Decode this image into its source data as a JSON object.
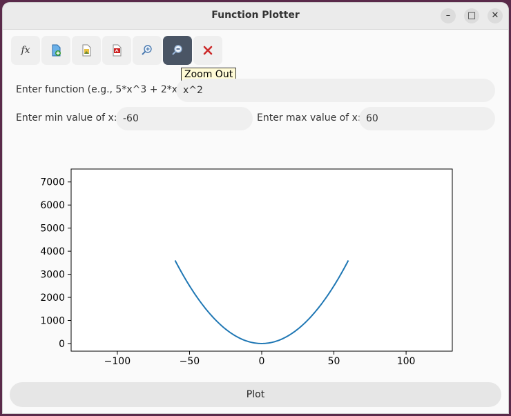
{
  "window": {
    "title": "Function Plotter"
  },
  "toolbar": {
    "buttons": [
      {
        "name": "function-button",
        "icon": "fx-icon",
        "glyph": "fx"
      },
      {
        "name": "new-file-button",
        "icon": "new-file-icon"
      },
      {
        "name": "image-button",
        "icon": "image-file-icon"
      },
      {
        "name": "pdf-button",
        "icon": "pdf-icon"
      },
      {
        "name": "zoom-in-button",
        "icon": "zoom-in-icon"
      },
      {
        "name": "zoom-out-button",
        "icon": "zoom-out-icon"
      },
      {
        "name": "clear-button",
        "icon": "close-icon"
      }
    ],
    "tooltip": "Zoom Out"
  },
  "form": {
    "function_label": "Enter function (e.g., 5*x^3 + 2*x):",
    "function_value": "x^2",
    "min_label": "Enter min value of x:",
    "min_value": "-60",
    "max_label": "Enter max value of x:",
    "max_value": "60"
  },
  "plot_button": "Plot",
  "chart_data": {
    "type": "line",
    "function": "x^2",
    "x_range": [
      -60,
      60
    ],
    "xlim": [
      -132,
      132
    ],
    "ylim": [
      -330,
      7560
    ],
    "x_ticks": [
      -100,
      -50,
      0,
      50,
      100
    ],
    "x_tick_labels": [
      "−100",
      "−50",
      "0",
      "50",
      "100"
    ],
    "y_ticks": [
      0,
      1000,
      2000,
      3000,
      4000,
      5000,
      6000,
      7000
    ],
    "y_tick_labels": [
      "0",
      "1000",
      "2000",
      "3000",
      "4000",
      "5000",
      "6000",
      "7000"
    ],
    "series": [
      {
        "color": "#1f77b4"
      }
    ],
    "grid": false
  }
}
